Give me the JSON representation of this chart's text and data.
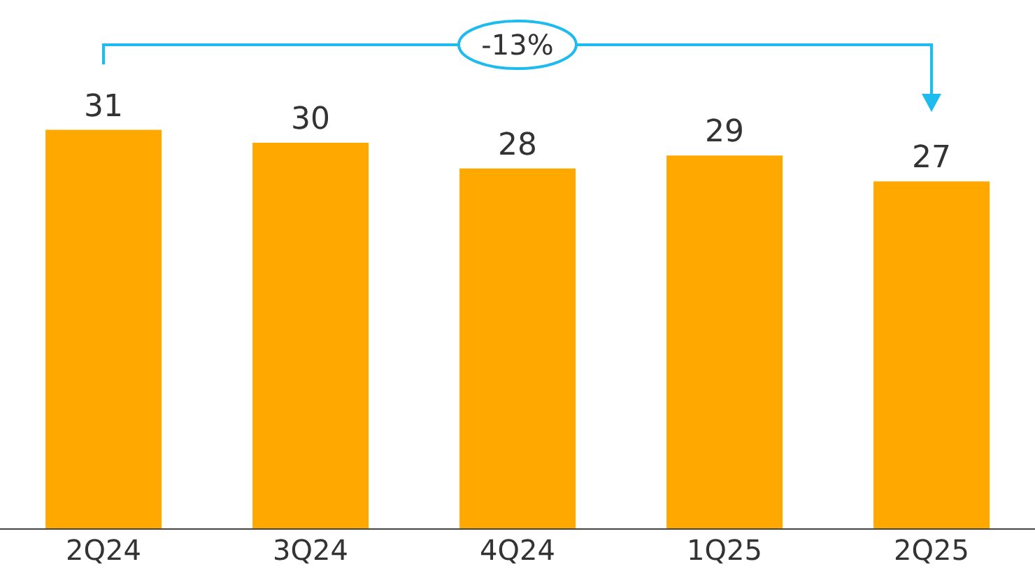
{
  "chart_data": {
    "type": "bar",
    "categories": [
      "2Q24",
      "3Q24",
      "4Q24",
      "1Q25",
      "2Q25"
    ],
    "values": [
      31,
      30,
      28,
      29,
      27
    ],
    "color": "#ffa800",
    "data_labels": true,
    "annotations": [
      "-13%"
    ]
  }
}
